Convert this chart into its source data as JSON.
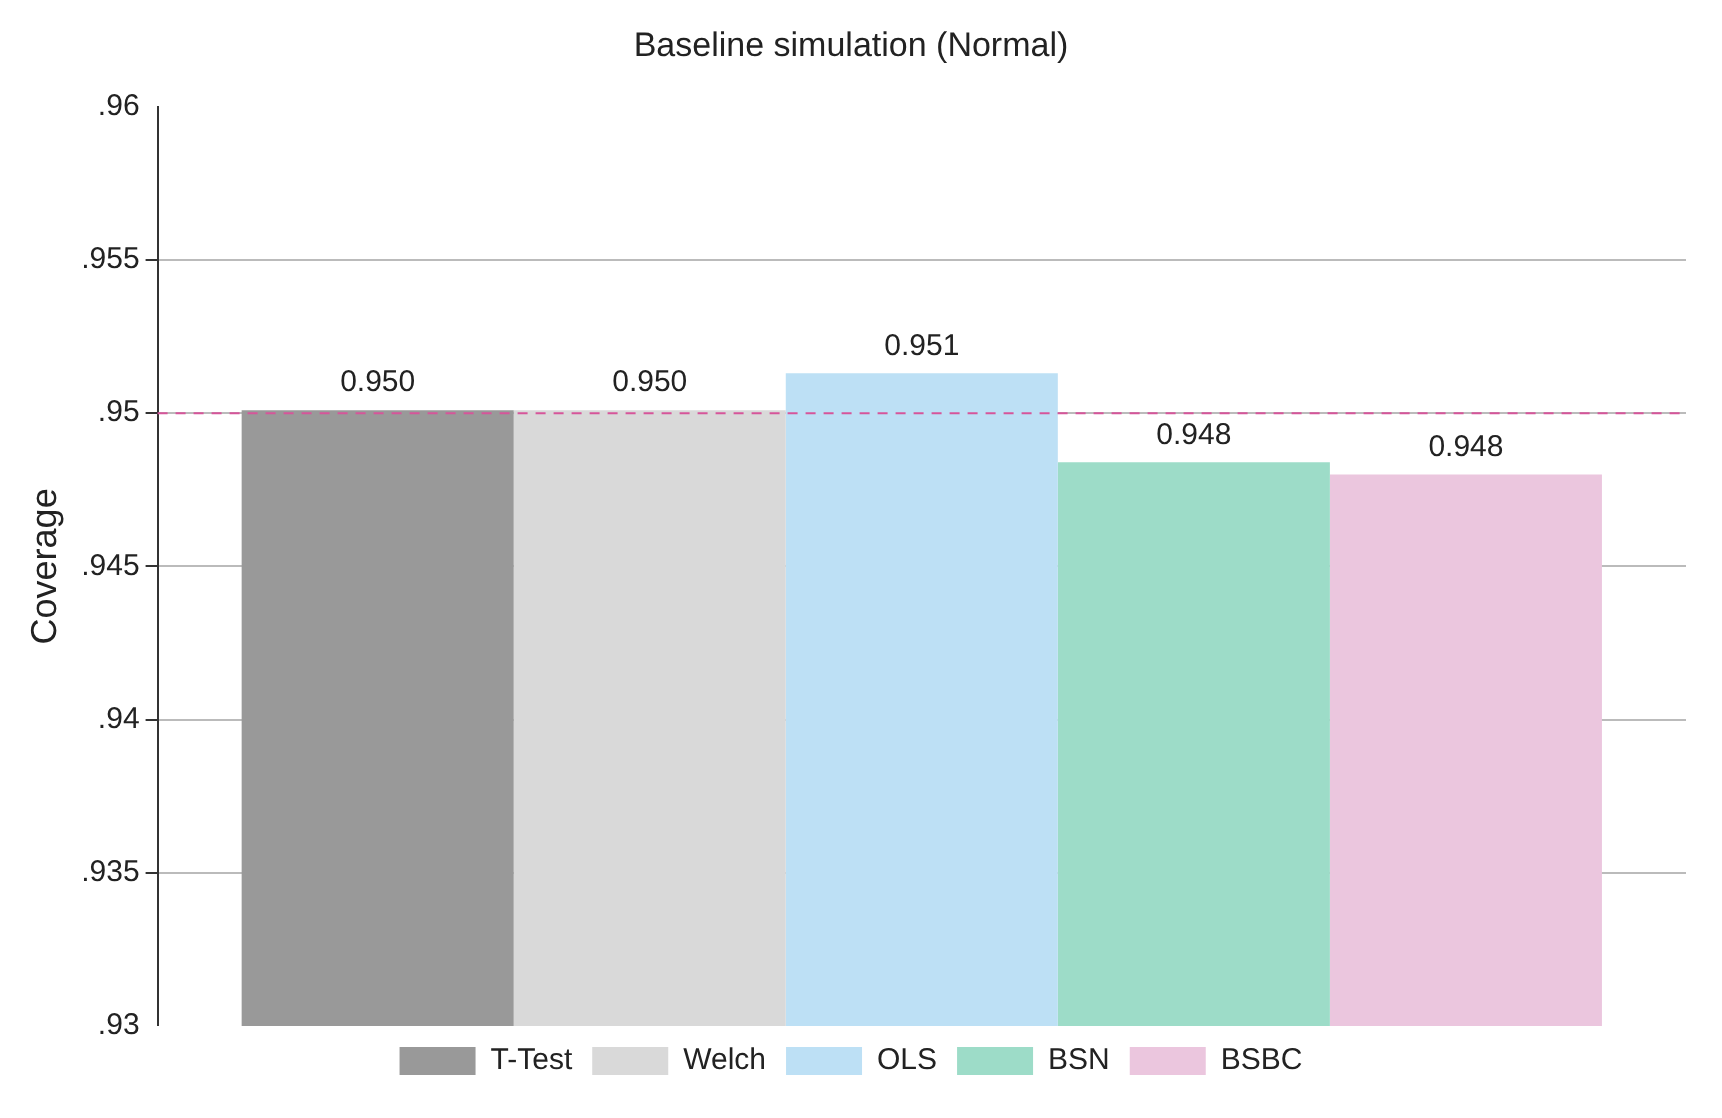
{
  "chart_data": {
    "type": "bar",
    "title": "Baseline simulation (Normal)",
    "ylabel": "Coverage",
    "categories": [
      null
    ],
    "series": [
      {
        "name": "T-Test",
        "color": "#999999",
        "values": [
          0.9501
        ],
        "value_labels": [
          "0.950"
        ]
      },
      {
        "name": "Welch",
        "color": "#d9d9d9",
        "values": [
          0.9501
        ],
        "value_labels": [
          "0.950"
        ]
      },
      {
        "name": "OLS",
        "color": "#bde0f5",
        "values": [
          0.9513
        ],
        "value_labels": [
          "0.951"
        ]
      },
      {
        "name": "BSN",
        "color": "#9ddcc8",
        "values": [
          0.9484
        ],
        "value_labels": [
          "0.948"
        ]
      },
      {
        "name": "BSBC",
        "color": "#ebc6de",
        "values": [
          0.948
        ],
        "value_labels": [
          "0.948"
        ]
      }
    ],
    "ylim": [
      0.93,
      0.96
    ],
    "yticks": [
      {
        "value": 0.93,
        "label": ".93"
      },
      {
        "value": 0.935,
        "label": ".935"
      },
      {
        "value": 0.94,
        "label": ".94"
      },
      {
        "value": 0.945,
        "label": ".945"
      },
      {
        "value": 0.95,
        "label": ".95"
      },
      {
        "value": 0.955,
        "label": ".955"
      },
      {
        "value": 0.96,
        "label": ".96"
      }
    ],
    "grid": "y",
    "legend": "bottom",
    "ref_lines": [
      {
        "axis": "y",
        "value": 0.95,
        "color": "#d6559a",
        "line_style": "dashed"
      }
    ]
  }
}
